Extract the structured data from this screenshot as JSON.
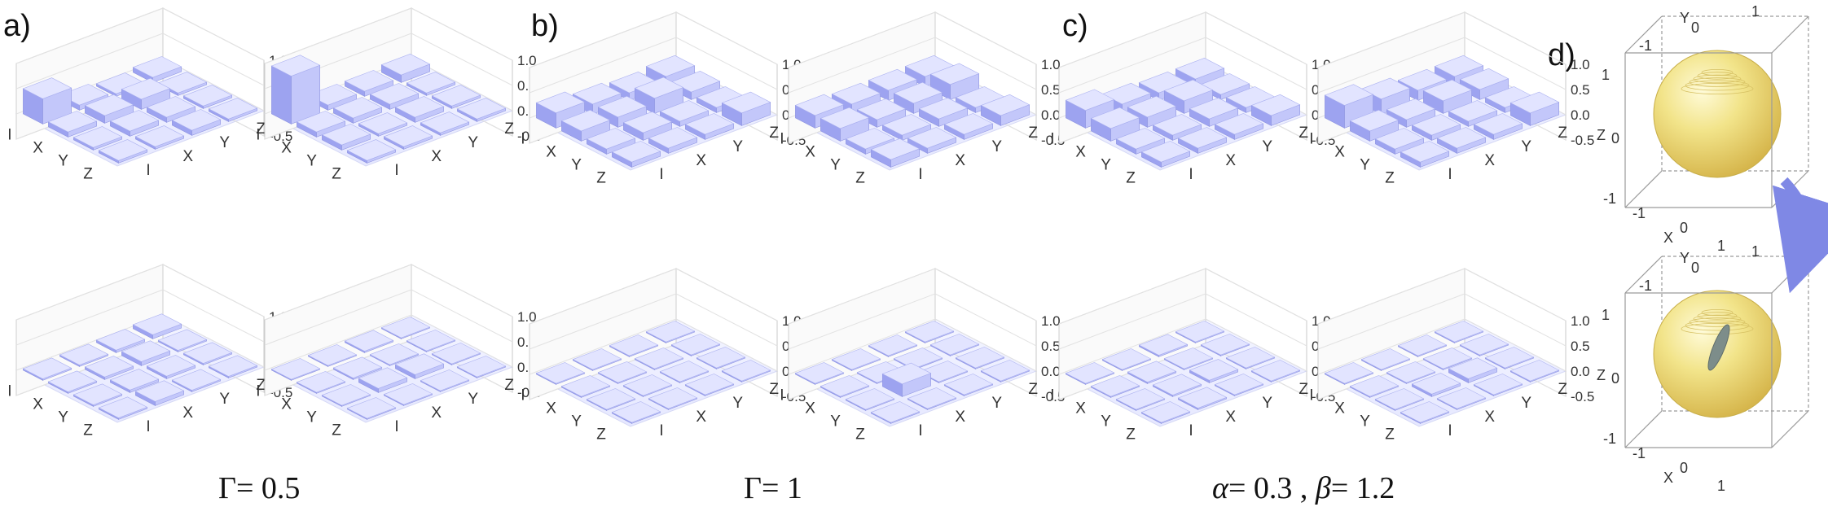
{
  "panel_labels": [
    "a)",
    "b)",
    "c)",
    "d)"
  ],
  "captions": [
    {
      "sym": "Γ",
      "rest": "= 0.5"
    },
    {
      "sym": "Γ",
      "rest": "= 1"
    },
    {
      "sym": "α",
      "rest": "= 0.3 , ",
      "sym2": "β",
      "rest2": "= 1.2"
    }
  ],
  "chart_data": [
    {
      "type": "bar3d",
      "panel": "a",
      "position": "top-left",
      "row_labels": [
        "I",
        "X",
        "Y",
        "Z"
      ],
      "col_labels": [
        "I",
        "X",
        "Y",
        "Z"
      ],
      "zticks": [
        "1.0",
        "0.5",
        "0.0",
        "-0.5"
      ],
      "zlim": [
        -0.5,
        1.0
      ],
      "values": [
        [
          0.5,
          0.1,
          0.05,
          0.1
        ],
        [
          0.1,
          0.15,
          0.2,
          0.05
        ],
        [
          0.05,
          0.1,
          0.1,
          0.05
        ],
        [
          0.05,
          0.05,
          0.1,
          0.05
        ]
      ]
    },
    {
      "type": "bar3d",
      "panel": "a",
      "position": "top-right",
      "row_labels": [
        "I",
        "X",
        "Y",
        "Z"
      ],
      "col_labels": [
        "I",
        "X",
        "Y",
        "Z"
      ],
      "zticks": [
        "1.0",
        "0.5",
        "0.0",
        "-0.5"
      ],
      "zlim": [
        -0.5,
        1.0
      ],
      "values": [
        [
          0.95,
          0.1,
          0.1,
          0.15
        ],
        [
          0.1,
          0.1,
          0.1,
          0.05
        ],
        [
          0.1,
          0.05,
          0.1,
          0.05
        ],
        [
          0.05,
          0.05,
          0.05,
          0.05
        ]
      ]
    },
    {
      "type": "bar3d",
      "panel": "a",
      "position": "bottom-left",
      "row_labels": [
        "I",
        "X",
        "Y",
        "Z"
      ],
      "col_labels": [
        "I",
        "X",
        "Y",
        "Z"
      ],
      "zticks": [
        "1.0",
        "0.5",
        "0.0",
        "-0.5"
      ],
      "zlim": [
        -0.5,
        1.0
      ],
      "values": [
        [
          0.03,
          0.03,
          0.05,
          0.08
        ],
        [
          0.03,
          0.05,
          0.08,
          0.03
        ],
        [
          0.03,
          0.05,
          0.05,
          0.03
        ],
        [
          0.03,
          0.08,
          0.03,
          0.03
        ]
      ]
    },
    {
      "type": "bar3d",
      "panel": "a",
      "position": "bottom-right",
      "row_labels": [
        "I",
        "X",
        "Y",
        "Z"
      ],
      "col_labels": [
        "I",
        "X",
        "Y",
        "Z"
      ],
      "zticks": [
        "1.0",
        "0.5",
        "0.0",
        "-0.5"
      ],
      "zlim": [
        -0.5,
        1.0
      ],
      "values": [
        [
          0.02,
          0.02,
          0.03,
          0.02
        ],
        [
          0.02,
          0.03,
          0.02,
          0.02
        ],
        [
          0.02,
          0.08,
          0.08,
          0.02
        ],
        [
          0.02,
          0.02,
          0.02,
          0.02
        ]
      ]
    },
    {
      "type": "bar3d",
      "panel": "b",
      "position": "top-left",
      "row_labels": [
        "I",
        "X",
        "Y",
        "Z"
      ],
      "col_labels": [
        "I",
        "X",
        "Y",
        "Z"
      ],
      "zticks": [
        "1.0",
        "0.5",
        "0.0",
        "-0.5"
      ],
      "zlim": [
        -0.5,
        1.0
      ],
      "values": [
        [
          0.3,
          0.2,
          0.15,
          0.2
        ],
        [
          0.2,
          0.2,
          0.3,
          0.15
        ],
        [
          0.1,
          0.15,
          0.1,
          0.1
        ],
        [
          0.1,
          0.1,
          0.1,
          0.25
        ]
      ]
    },
    {
      "type": "bar3d",
      "panel": "b",
      "position": "top-right",
      "row_labels": [
        "I",
        "X",
        "Y",
        "Z"
      ],
      "col_labels": [
        "I",
        "X",
        "Y",
        "Z"
      ],
      "zticks": [
        "1.0",
        "0.5",
        "0.0",
        "-0.5"
      ],
      "zlim": [
        -0.5,
        1.0
      ],
      "values": [
        [
          0.25,
          0.2,
          0.2,
          0.2
        ],
        [
          0.25,
          0.15,
          0.2,
          0.3
        ],
        [
          0.1,
          0.1,
          0.15,
          0.1
        ],
        [
          0.15,
          0.1,
          0.1,
          0.2
        ]
      ]
    },
    {
      "type": "bar3d",
      "panel": "b",
      "position": "bottom-left",
      "row_labels": [
        "I",
        "X",
        "Y",
        "Z"
      ],
      "col_labels": [
        "I",
        "X",
        "Y",
        "Z"
      ],
      "zticks": [
        "1.0",
        "0.5",
        "0.0",
        "-0.5"
      ],
      "zlim": [
        -0.5,
        1.0
      ],
      "values": [
        [
          0.02,
          0.02,
          0.02,
          0.02
        ],
        [
          0.02,
          0.02,
          0.02,
          0.02
        ],
        [
          0.02,
          0.02,
          0.02,
          0.02
        ],
        [
          0.02,
          0.02,
          0.02,
          0.02
        ]
      ]
    },
    {
      "type": "bar3d",
      "panel": "b",
      "position": "bottom-right",
      "row_labels": [
        "I",
        "X",
        "Y",
        "Z"
      ],
      "col_labels": [
        "I",
        "X",
        "Y",
        "Z"
      ],
      "zticks": [
        "1.0",
        "0.5",
        "0.0",
        "-0.5"
      ],
      "zlim": [
        -0.5,
        1.0
      ],
      "values": [
        [
          0.02,
          0.02,
          0.02,
          0.02
        ],
        [
          0.02,
          0.02,
          0.02,
          0.02
        ],
        [
          0.02,
          0.25,
          0.02,
          0.02
        ],
        [
          0.02,
          0.02,
          0.02,
          0.02
        ]
      ]
    },
    {
      "type": "bar3d",
      "panel": "c",
      "position": "top-left",
      "row_labels": [
        "I",
        "X",
        "Y",
        "Z"
      ],
      "col_labels": [
        "I",
        "X",
        "Y",
        "Z"
      ],
      "zticks": [
        "1.0",
        "0.5",
        "0.0",
        "-0.5"
      ],
      "zlim": [
        -0.5,
        1.0
      ],
      "values": [
        [
          0.35,
          0.2,
          0.15,
          0.15
        ],
        [
          0.25,
          0.2,
          0.25,
          0.1
        ],
        [
          0.1,
          0.1,
          0.15,
          0.1
        ],
        [
          0.1,
          0.1,
          0.1,
          0.2
        ]
      ]
    },
    {
      "type": "bar3d",
      "panel": "c",
      "position": "top-right",
      "row_labels": [
        "I",
        "X",
        "Y",
        "Z"
      ],
      "col_labels": [
        "I",
        "X",
        "Y",
        "Z"
      ],
      "zticks": [
        "1.0",
        "0.5",
        "0.0",
        "-0.5"
      ],
      "zlim": [
        -0.5,
        1.0
      ],
      "values": [
        [
          0.45,
          0.3,
          0.2,
          0.2
        ],
        [
          0.2,
          0.15,
          0.25,
          0.2
        ],
        [
          0.1,
          0.1,
          0.1,
          0.1
        ],
        [
          0.1,
          0.1,
          0.1,
          0.25
        ]
      ]
    },
    {
      "type": "bar3d",
      "panel": "c",
      "position": "bottom-left",
      "row_labels": [
        "I",
        "X",
        "Y",
        "Z"
      ],
      "col_labels": [
        "I",
        "X",
        "Y",
        "Z"
      ],
      "zticks": [
        "1.0",
        "0.5",
        "0.0",
        "-0.5"
      ],
      "zlim": [
        -0.5,
        1.0
      ],
      "values": [
        [
          0.02,
          0.02,
          0.03,
          0.02
        ],
        [
          0.02,
          0.03,
          0.02,
          0.02
        ],
        [
          0.02,
          0.03,
          0.05,
          0.02
        ],
        [
          0.02,
          0.03,
          0.02,
          0.02
        ]
      ]
    },
    {
      "type": "bar3d",
      "panel": "c",
      "position": "bottom-right",
      "row_labels": [
        "I",
        "X",
        "Y",
        "Z"
      ],
      "col_labels": [
        "I",
        "X",
        "Y",
        "Z"
      ],
      "zticks": [
        "1.0",
        "0.5",
        "0.0",
        "-0.5"
      ],
      "zlim": [
        -0.5,
        1.0
      ],
      "values": [
        [
          0.02,
          0.02,
          0.02,
          0.02
        ],
        [
          0.02,
          0.02,
          0.02,
          0.02
        ],
        [
          0.02,
          0.05,
          0.08,
          0.02
        ],
        [
          0.02,
          0.02,
          0.02,
          0.02
        ]
      ]
    },
    {
      "type": "bloch3d",
      "panel": "d",
      "position": "top",
      "axis_labels": [
        "X",
        "Y",
        "Z"
      ],
      "ticks": [
        "-1",
        "0",
        "1"
      ],
      "shape": "sphere"
    },
    {
      "type": "bloch3d",
      "panel": "d",
      "position": "bottom",
      "axis_labels": [
        "X",
        "Y",
        "Z"
      ],
      "ticks": [
        "-1",
        "0",
        "1"
      ],
      "shape": "sphere with inner flattened ellipsoid"
    }
  ],
  "colors": {
    "bar_top": "#e2e4ff",
    "bar_front": "#9da3f0",
    "bar_side": "#c3c7fa",
    "floor": "#eef0ff",
    "sphere": "#eedf6e",
    "ellipsoid": "#7d8d8a",
    "arrow": "#7f88e5"
  }
}
